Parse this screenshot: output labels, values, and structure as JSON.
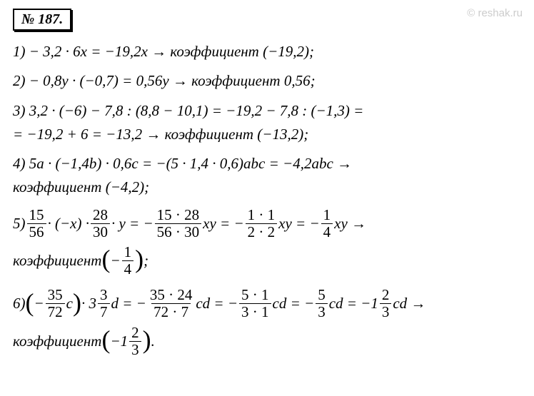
{
  "watermark": "© reshak.ru",
  "header": "№ 187.",
  "lines": {
    "l1": "1) − 3,2 · 6x = −19,2x → коэффициент (−19,2);",
    "l2": "2) − 0,8y · (−0,7) = 0,56y → коэффициент 0,56;",
    "l3a": "3) 3,2 · (−6) − 7,8 : (8,8 − 10,1) = −19,2 − 7,8 : (−1,3) =",
    "l3b": "= −19,2 + 6 = −13,2 → коэффициент (−13,2);",
    "l4a": "4) 5a · (−1,4b) · 0,6c = −(5 · 1,4 · 0,6)abc = −4,2abc →",
    "l4b": "коэффициент (−4,2);",
    "l5_prefix": "5) ",
    "l5_f1n": "15",
    "l5_f1d": "56",
    "l5_mid1": " · (−x) · ",
    "l5_f2n": "28",
    "l5_f2d": "30",
    "l5_mid2": " · y = − ",
    "l5_f3n": "15 · 28",
    "l5_f3d": "56 · 30",
    "l5_mid3": " xy = − ",
    "l5_f4n": "1 · 1",
    "l5_f4d": "2 · 2",
    "l5_mid4": " xy = − ",
    "l5_f5n": "1",
    "l5_f5d": "4",
    "l5_end": " xy →",
    "l5b_pre": "коэффициент ",
    "l5b_inner_pre": "− ",
    "l5b_fn": "1",
    "l5b_fd": "4",
    "l5b_post": " ;",
    "l6_prefix": "6) ",
    "l6_inner_pre": "− ",
    "l6_f1n": "35",
    "l6_f1d": "72",
    "l6_inner_post": " c",
    "l6_mid1": " · 3",
    "l6_f2n": "3",
    "l6_f2d": "7",
    "l6_mid2": " d = − ",
    "l6_f3n": "35 · 24",
    "l6_f3d": "72 · 7",
    "l6_mid3": " cd = − ",
    "l6_f4n": "5 · 1",
    "l6_f4d": "3 · 1",
    "l6_mid4": " cd = − ",
    "l6_f5n": "5",
    "l6_f5d": "3",
    "l6_mid5": " cd = −1",
    "l6_f6n": "2",
    "l6_f6d": "3",
    "l6_end": " cd →",
    "l6b_pre": "коэффициент ",
    "l6b_inner_pre": "−1",
    "l6b_fn": "2",
    "l6b_fd": "3",
    "l6b_post": " ."
  }
}
